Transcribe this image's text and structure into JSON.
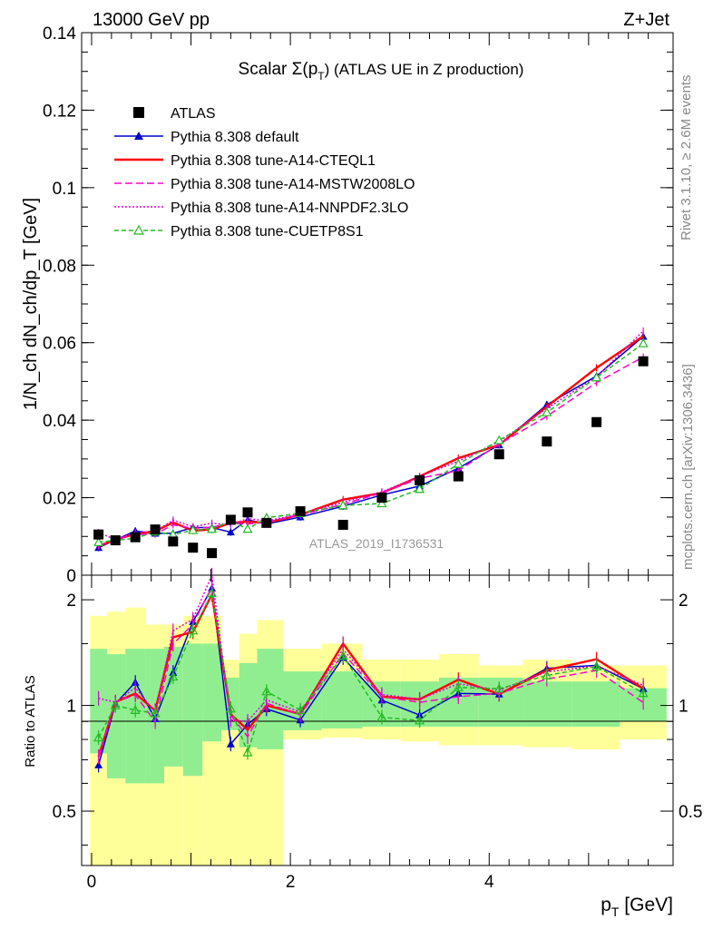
{
  "header": {
    "left": "13000 GeV pp",
    "right": "Z+Jet"
  },
  "side_labels": {
    "rivet": "Rivet 3.1.10, ≥ 2.6M events",
    "mcplots": "mcplots.cern.ch [arXiv:1306.3436]"
  },
  "watermark": "ATLAS_2019_I1736531",
  "chart_data": {
    "type": "scatter",
    "title": "Scalar Σ(p_T) (ATLAS UE in Z production)",
    "title_main": "Scalar Σ(p",
    "title_sub": "T",
    "title_tail": ") (ATLAS UE in Z production)",
    "xlabel": "p_T [GeV]",
    "xlabel_main": "p",
    "xlabel_sub": "T",
    "xlabel_tail": " [GeV]",
    "ylabel": "1/N_ch dN_ch/dp_T [GeV]",
    "ratio_ylabel": "Ratio to ATLAS",
    "xlim": [
      -0.1,
      5.85
    ],
    "ylim": [
      0,
      0.14
    ],
    "ratio_ylim": [
      0.35,
      2.35
    ],
    "ratio_log": true,
    "x_ticks": [
      "0",
      "2",
      "4"
    ],
    "y_ticks": [
      "0",
      "0.02",
      "0.04",
      "0.06",
      "0.08",
      "0.1",
      "0.12",
      "0.14"
    ],
    "ratio_ticks": [
      "0.5",
      "1",
      "2"
    ],
    "legend_position": "top-left",
    "x": [
      0.07,
      0.24,
      0.44,
      0.64,
      0.82,
      1.02,
      1.21,
      1.4,
      1.57,
      1.76,
      2.1,
      2.53,
      2.92,
      3.3,
      3.69,
      4.1,
      4.58,
      5.08,
      5.55
    ],
    "atlas": {
      "name": "ATLAS",
      "color": "#000000",
      "values": [
        0.0105,
        0.009,
        0.0098,
        0.0118,
        0.0087,
        0.0071,
        0.0057,
        0.0143,
        0.0162,
        0.0135,
        0.0165,
        0.013,
        0.02,
        0.0245,
        0.0255,
        0.0312,
        0.0345,
        0.0395,
        0.0552
      ]
    },
    "series": [
      {
        "name": "Pythia 8.308 default",
        "color": "#0000cc",
        "dash": "",
        "marker": "triangle",
        "values": [
          0.0071,
          0.0091,
          0.0114,
          0.0108,
          0.0108,
          0.0123,
          0.0123,
          0.0111,
          0.0143,
          0.0132,
          0.015,
          0.0178,
          0.0207,
          0.023,
          0.0276,
          0.0336,
          0.044,
          0.0514,
          0.0616
        ]
      },
      {
        "name": "Pythia 8.308 tune-A14-CTEQL1",
        "color": "#ff0000",
        "dash": "",
        "marker": "none",
        "values": [
          0.0075,
          0.0092,
          0.0106,
          0.0114,
          0.0136,
          0.0115,
          0.0118,
          0.0135,
          0.0138,
          0.0135,
          0.0156,
          0.0195,
          0.0212,
          0.0255,
          0.0302,
          0.0336,
          0.0435,
          0.0535,
          0.0617
        ]
      },
      {
        "name": "Pythia 8.308 tune-A14-MSTW2008LO",
        "color": "#ff00cc",
        "dash": "8,4",
        "marker": "none",
        "values": [
          0.0075,
          0.0092,
          0.0105,
          0.0106,
          0.013,
          0.0121,
          0.0124,
          0.0134,
          0.0132,
          0.0137,
          0.0155,
          0.0183,
          0.0212,
          0.025,
          0.027,
          0.0338,
          0.041,
          0.0497,
          0.0563
        ]
      },
      {
        "name": "Pythia 8.308 tune-A14-NNPDF2.3LO",
        "color": "#dd00dd",
        "dash": "2,2",
        "marker": "none",
        "values": [
          0.011,
          0.0092,
          0.011,
          0.0113,
          0.0142,
          0.0125,
          0.0134,
          0.013,
          0.0146,
          0.014,
          0.0158,
          0.0188,
          0.0215,
          0.0255,
          0.0294,
          0.0345,
          0.043,
          0.0512,
          0.063
        ]
      },
      {
        "name": "Pythia 8.308 tune-CUETP8S1",
        "color": "#22bb22",
        "dash": "5,3",
        "marker": "open-triangle",
        "values": [
          0.0085,
          0.009,
          0.0095,
          0.0112,
          0.0105,
          0.0116,
          0.0119,
          0.014,
          0.0119,
          0.0148,
          0.016,
          0.018,
          0.0185,
          0.0222,
          0.0287,
          0.0348,
          0.042,
          0.051,
          0.0598
        ]
      }
    ],
    "ratio_band_inner": {
      "color": "#90ee90",
      "lo": [
        0.73,
        0.62,
        0.6,
        0.6,
        0.67,
        0.63,
        0.79,
        0.85,
        0.76,
        0.75,
        0.85,
        0.86,
        0.87,
        0.87,
        0.87,
        0.87,
        0.87,
        0.87,
        0.9
      ],
      "hi": [
        1.45,
        1.4,
        1.45,
        1.45,
        1.47,
        1.5,
        1.5,
        1.2,
        1.32,
        1.45,
        1.25,
        1.25,
        1.17,
        1.17,
        1.2,
        1.2,
        1.17,
        1.17,
        1.12
      ]
    },
    "ratio_band_outer": {
      "color": "#ffff99",
      "lo": [
        0.35,
        0.35,
        0.35,
        0.35,
        0.35,
        0.35,
        0.35,
        0.35,
        0.35,
        0.35,
        0.8,
        0.81,
        0.8,
        0.79,
        0.77,
        0.77,
        0.76,
        0.75,
        0.8
      ],
      "hi": [
        1.8,
        1.85,
        1.9,
        1.7,
        1.7,
        1.8,
        1.8,
        1.35,
        1.6,
        1.75,
        1.45,
        1.5,
        1.35,
        1.35,
        1.4,
        1.3,
        1.35,
        1.3,
        1.3
      ]
    }
  }
}
